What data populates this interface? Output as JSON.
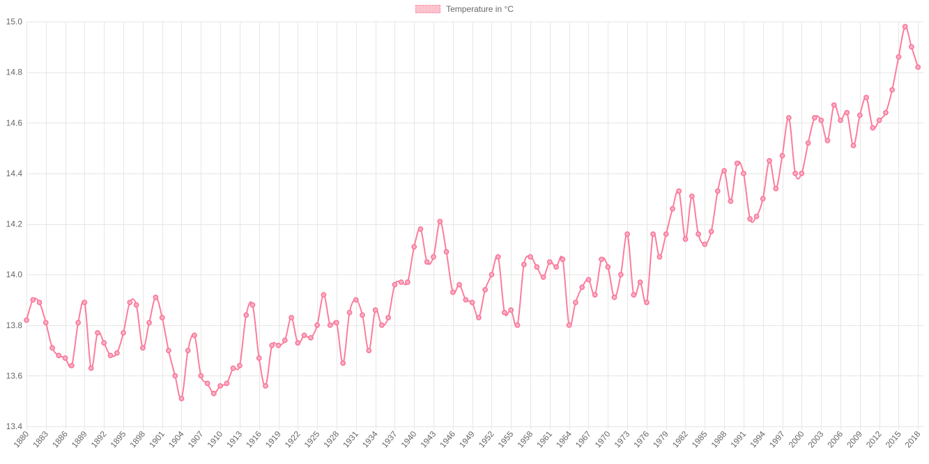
{
  "page": {
    "background": "#ffffff"
  },
  "legend": {
    "label": "Temperature in °C",
    "position": "top"
  },
  "style": {
    "line_color": "#fb7d9c",
    "point_fill": "#fbb1c2",
    "point_border": "#f8779a",
    "legend_box_fill": "#fcc3ce",
    "legend_box_border": "#f793aa",
    "grid_color": "#e6e6e6",
    "tick_text_color": "#666666",
    "background": "#ffffff"
  },
  "chart_data": {
    "type": "line",
    "title": "Temperature in °C",
    "legend_position": "top",
    "grid": true,
    "xlabel": "",
    "ylabel": "",
    "x_start": 1880,
    "x_end": 2018,
    "x_tick_step": 3,
    "ylim": [
      13.4,
      15.0
    ],
    "y_tick_step": 0.2,
    "y_tick_labels": [
      "15.0",
      "14.8",
      "14.6",
      "14.4",
      "14.2",
      "14.0",
      "13.8",
      "13.6",
      "13.4"
    ],
    "x_tick_labels": [
      "1880",
      "1883",
      "1886",
      "1889",
      "1892",
      "1895",
      "1898",
      "1901",
      "1904",
      "1907",
      "1910",
      "1913",
      "1916",
      "1919",
      "1922",
      "1925",
      "1928",
      "1931",
      "1934",
      "1937",
      "1940",
      "1943",
      "1946",
      "1949",
      "1952",
      "1955",
      "1958",
      "1961",
      "1964",
      "1967",
      "1970",
      "1973",
      "1976",
      "1979",
      "1982",
      "1985",
      "1988",
      "1991",
      "1994",
      "1997",
      "2000",
      "2003",
      "2006",
      "2009",
      "2012",
      "2015",
      "2018"
    ],
    "series": [
      {
        "name": "Temperature in °C",
        "unit": "°C",
        "years_range": [
          1880,
          2018
        ],
        "values": [
          13.82,
          13.9,
          13.89,
          13.81,
          13.71,
          13.68,
          13.67,
          13.64,
          13.81,
          13.89,
          13.63,
          13.77,
          13.73,
          13.68,
          13.69,
          13.77,
          13.89,
          13.88,
          13.71,
          13.81,
          13.91,
          13.83,
          13.7,
          13.6,
          13.51,
          13.7,
          13.76,
          13.6,
          13.57,
          13.53,
          13.56,
          13.57,
          13.63,
          13.64,
          13.84,
          13.88,
          13.67,
          13.56,
          13.72,
          13.72,
          13.74,
          13.83,
          13.73,
          13.76,
          13.75,
          13.8,
          13.92,
          13.8,
          13.81,
          13.65,
          13.85,
          13.9,
          13.84,
          13.7,
          13.86,
          13.8,
          13.83,
          13.96,
          13.97,
          13.97,
          14.11,
          14.18,
          14.05,
          14.07,
          14.21,
          14.09,
          13.93,
          13.96,
          13.9,
          13.89,
          13.83,
          13.94,
          14.0,
          14.07,
          13.85,
          13.86,
          13.8,
          14.04,
          14.07,
          14.03,
          13.99,
          14.05,
          14.03,
          14.06,
          13.8,
          13.89,
          13.95,
          13.98,
          13.92,
          14.06,
          14.03,
          13.91,
          14.0,
          14.16,
          13.92,
          13.97,
          13.89,
          14.16,
          14.07,
          14.16,
          14.26,
          14.33,
          14.14,
          14.31,
          14.16,
          14.12,
          14.17,
          14.33,
          14.41,
          14.29,
          14.44,
          14.4,
          14.22,
          14.23,
          14.3,
          14.45,
          14.34,
          14.47,
          14.62,
          14.4,
          14.4,
          14.52,
          14.62,
          14.61,
          14.53,
          14.67,
          14.61,
          14.64,
          14.51,
          14.63,
          14.7,
          14.58,
          14.61,
          14.64,
          14.73,
          14.86,
          14.98,
          14.9,
          14.82
        ]
      }
    ]
  }
}
